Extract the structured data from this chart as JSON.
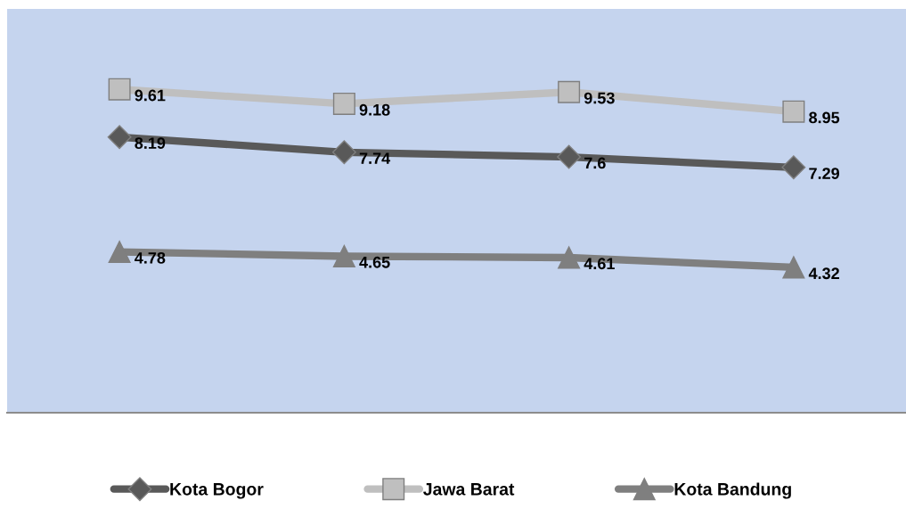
{
  "chart_data": {
    "type": "line",
    "categories": [
      null,
      null,
      null,
      null
    ],
    "series": [
      {
        "name": "Kota Bogor",
        "color": "#595959",
        "marker": "diamond",
        "values": [
          8.19,
          7.74,
          7.6,
          7.29
        ]
      },
      {
        "name": "Jawa Barat",
        "color": "#bfbfbf",
        "marker": "square",
        "values": [
          9.61,
          9.18,
          9.53,
          8.95
        ]
      },
      {
        "name": "Kota Bandung",
        "color": "#7f7f7f",
        "marker": "triangle",
        "values": [
          4.78,
          4.65,
          4.61,
          4.32
        ]
      }
    ],
    "ylim": [
      0,
      12
    ],
    "tick_labels": false,
    "data_labels": true,
    "legend": "bottom",
    "grid": false
  }
}
